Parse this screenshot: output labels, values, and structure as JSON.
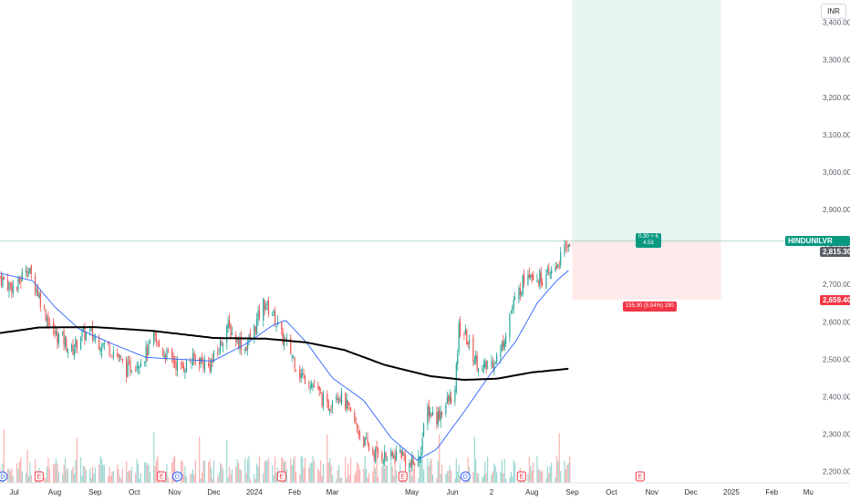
{
  "currency": "INR",
  "symbol": "HINDUNILVR",
  "last_price": "2,815.60",
  "last_price_secondary": "2,815.30",
  "stop_price": "2,659.40",
  "target_box_label_line1": "0.30 + 6",
  "target_box_label_line2": "4.53",
  "stop_box_label": "155.90 (5.54%) 190",
  "colors": {
    "up": "#26a69a",
    "down": "#ef5350",
    "ma_fast": "#2962ff",
    "ma_slow": "#000000",
    "target_zone": "#e6f4f2",
    "stop_zone": "#fdeaea",
    "symbol_tag": "#089981",
    "stop_tag": "#f23645"
  },
  "event_markers": [
    {
      "type": "D",
      "label": "D",
      "x": "2023-06-22"
    },
    {
      "type": "E",
      "label": "E",
      "x": "2023-07-20"
    },
    {
      "type": "E",
      "label": "E",
      "x": "2023-10-22"
    },
    {
      "type": "D",
      "label": "D",
      "x": "2023-11-03"
    },
    {
      "type": "E",
      "label": "E",
      "x": "2024-01-22"
    },
    {
      "type": "E",
      "label": "E",
      "x": "2024-04-24"
    },
    {
      "type": "D",
      "label": "D",
      "x": "2024-06-11"
    },
    {
      "type": "E",
      "label": "E",
      "x": "2024-07-24"
    },
    {
      "type": "E",
      "label": "E",
      "x": "2024-10-23"
    }
  ],
  "chart_data": {
    "type": "candlestick",
    "y_axis": {
      "ticks": [
        2200,
        2300,
        2400,
        2500,
        2600,
        2700,
        2800,
        2900,
        3000,
        3100,
        3200,
        3300,
        3400
      ],
      "tick_labels": [
        "2,200.00",
        "2,300.00",
        "2,400.00",
        "2,500.00",
        "2,600.00",
        "2,700.00",
        "2,800.00",
        "2,900.00",
        "3,000.00",
        "3,100.00",
        "3,200.00",
        "3,300.00",
        "3,400.00"
      ],
      "range": [
        2170,
        3460
      ],
      "position": "right"
    },
    "x_axis": {
      "tick_labels": [
        "Jul",
        "Aug",
        "Sep",
        "Oct",
        "Nov",
        "Dec",
        "2024",
        "Feb",
        "Mar",
        "May",
        "Jun",
        "2",
        "Aug",
        "Sep",
        "Oct",
        "Nov",
        "Dec",
        "2025",
        "Feb",
        "Mu"
      ],
      "tick_dates": [
        "2023-07-01",
        "2023-08-01",
        "2023-09-01",
        "2023-10-01",
        "2023-11-01",
        "2023-12-01",
        "2024-01-01",
        "2024-02-01",
        "2024-03-01",
        "2024-05-01",
        "2024-06-01",
        "2024-07-01",
        "2024-08-01",
        "2024-09-01",
        "2024-10-01",
        "2024-11-01",
        "2024-12-01",
        "2025-01-01",
        "2025-02-01",
        "2025-03-01"
      ],
      "range": [
        "2023-06-20",
        "2025-03-05"
      ]
    },
    "price_anchors": [
      [
        "2023-06-20",
        2720
      ],
      [
        "2023-06-26",
        2700
      ],
      [
        "2023-07-03",
        2690
      ],
      [
        "2023-07-10",
        2750
      ],
      [
        "2023-07-17",
        2700
      ],
      [
        "2023-07-24",
        2630
      ],
      [
        "2023-07-31",
        2570
      ],
      [
        "2023-08-07",
        2555
      ],
      [
        "2023-08-14",
        2520
      ],
      [
        "2023-08-21",
        2565
      ],
      [
        "2023-08-28",
        2570
      ],
      [
        "2023-09-04",
        2545
      ],
      [
        "2023-09-11",
        2535
      ],
      [
        "2023-09-18",
        2510
      ],
      [
        "2023-09-25",
        2470
      ],
      [
        "2023-10-02",
        2490
      ],
      [
        "2023-10-09",
        2510
      ],
      [
        "2023-10-16",
        2555
      ],
      [
        "2023-10-23",
        2520
      ],
      [
        "2023-10-30",
        2500
      ],
      [
        "2023-11-06",
        2475
      ],
      [
        "2023-11-13",
        2495
      ],
      [
        "2023-11-20",
        2500
      ],
      [
        "2023-11-27",
        2480
      ],
      [
        "2023-12-04",
        2520
      ],
      [
        "2023-12-11",
        2590
      ],
      [
        "2023-12-18",
        2555
      ],
      [
        "2023-12-25",
        2530
      ],
      [
        "2024-01-01",
        2580
      ],
      [
        "2024-01-08",
        2650
      ],
      [
        "2024-01-15",
        2625
      ],
      [
        "2024-01-22",
        2560
      ],
      [
        "2024-01-29",
        2520
      ],
      [
        "2024-02-05",
        2460
      ],
      [
        "2024-02-12",
        2445
      ],
      [
        "2024-02-19",
        2410
      ],
      [
        "2024-02-26",
        2370
      ],
      [
        "2024-03-04",
        2415
      ],
      [
        "2024-03-11",
        2380
      ],
      [
        "2024-03-18",
        2330
      ],
      [
        "2024-03-25",
        2280
      ],
      [
        "2024-04-01",
        2250
      ],
      [
        "2024-04-08",
        2245
      ],
      [
        "2024-04-15",
        2235
      ],
      [
        "2024-04-22",
        2255
      ],
      [
        "2024-04-29",
        2215
      ],
      [
        "2024-05-06",
        2230
      ],
      [
        "2024-05-13",
        2365
      ],
      [
        "2024-05-20",
        2345
      ],
      [
        "2024-05-27",
        2380
      ],
      [
        "2024-06-03",
        2410
      ],
      [
        "2024-06-06",
        2580
      ],
      [
        "2024-06-10",
        2570
      ],
      [
        "2024-06-17",
        2510
      ],
      [
        "2024-06-24",
        2470
      ],
      [
        "2024-07-01",
        2490
      ],
      [
        "2024-07-08",
        2520
      ],
      [
        "2024-07-15",
        2620
      ],
      [
        "2024-07-22",
        2680
      ],
      [
        "2024-07-29",
        2740
      ],
      [
        "2024-08-05",
        2720
      ],
      [
        "2024-08-12",
        2715
      ],
      [
        "2024-08-19",
        2745
      ],
      [
        "2024-08-26",
        2790
      ],
      [
        "2024-08-30",
        2815.6
      ]
    ],
    "ma_fast_anchors": [
      [
        "2023-06-20",
        2730
      ],
      [
        "2023-07-15",
        2710
      ],
      [
        "2023-08-01",
        2640
      ],
      [
        "2023-08-20",
        2580
      ],
      [
        "2023-09-15",
        2540
      ],
      [
        "2023-10-10",
        2505
      ],
      [
        "2023-11-05",
        2500
      ],
      [
        "2023-11-30",
        2495
      ],
      [
        "2023-12-25",
        2540
      ],
      [
        "2024-01-15",
        2590
      ],
      [
        "2024-01-25",
        2605
      ],
      [
        "2024-02-10",
        2545
      ],
      [
        "2024-03-01",
        2450
      ],
      [
        "2024-03-25",
        2390
      ],
      [
        "2024-04-15",
        2290
      ],
      [
        "2024-05-05",
        2230
      ],
      [
        "2024-05-20",
        2260
      ],
      [
        "2024-06-10",
        2360
      ],
      [
        "2024-06-30",
        2460
      ],
      [
        "2024-07-20",
        2550
      ],
      [
        "2024-08-05",
        2650
      ],
      [
        "2024-08-20",
        2710
      ],
      [
        "2024-08-30",
        2740
      ]
    ],
    "ma_slow_anchors": [
      [
        "2023-06-20",
        2570
      ],
      [
        "2023-07-20",
        2585
      ],
      [
        "2023-09-01",
        2586
      ],
      [
        "2023-10-15",
        2576
      ],
      [
        "2023-12-01",
        2557
      ],
      [
        "2024-01-10",
        2555
      ],
      [
        "2024-02-10",
        2545
      ],
      [
        "2024-03-10",
        2525
      ],
      [
        "2024-04-10",
        2485
      ],
      [
        "2024-05-15",
        2455
      ],
      [
        "2024-06-10",
        2445
      ],
      [
        "2024-07-05",
        2448
      ],
      [
        "2024-08-01",
        2465
      ],
      [
        "2024-08-30",
        2475
      ]
    ],
    "position_tool": {
      "entry": 2815.3,
      "target": 3460,
      "stop": 2659.4,
      "start": "2024-09-01",
      "end": "2024-12-24"
    }
  }
}
